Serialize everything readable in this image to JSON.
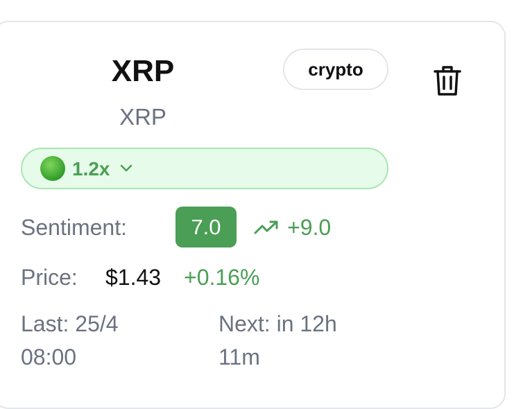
{
  "card": {
    "title": "XRP",
    "subtitle": "XRP",
    "badge": "crypto",
    "leverage": "1.2x",
    "sentiment": {
      "label": "Sentiment:",
      "score": "7.0",
      "change": "+9.0"
    },
    "price": {
      "label": "Price:",
      "value": "$1.43",
      "change": "+0.16%"
    },
    "last": "Last: 25/4 08:00",
    "next": "Next: in 12h 11m"
  }
}
